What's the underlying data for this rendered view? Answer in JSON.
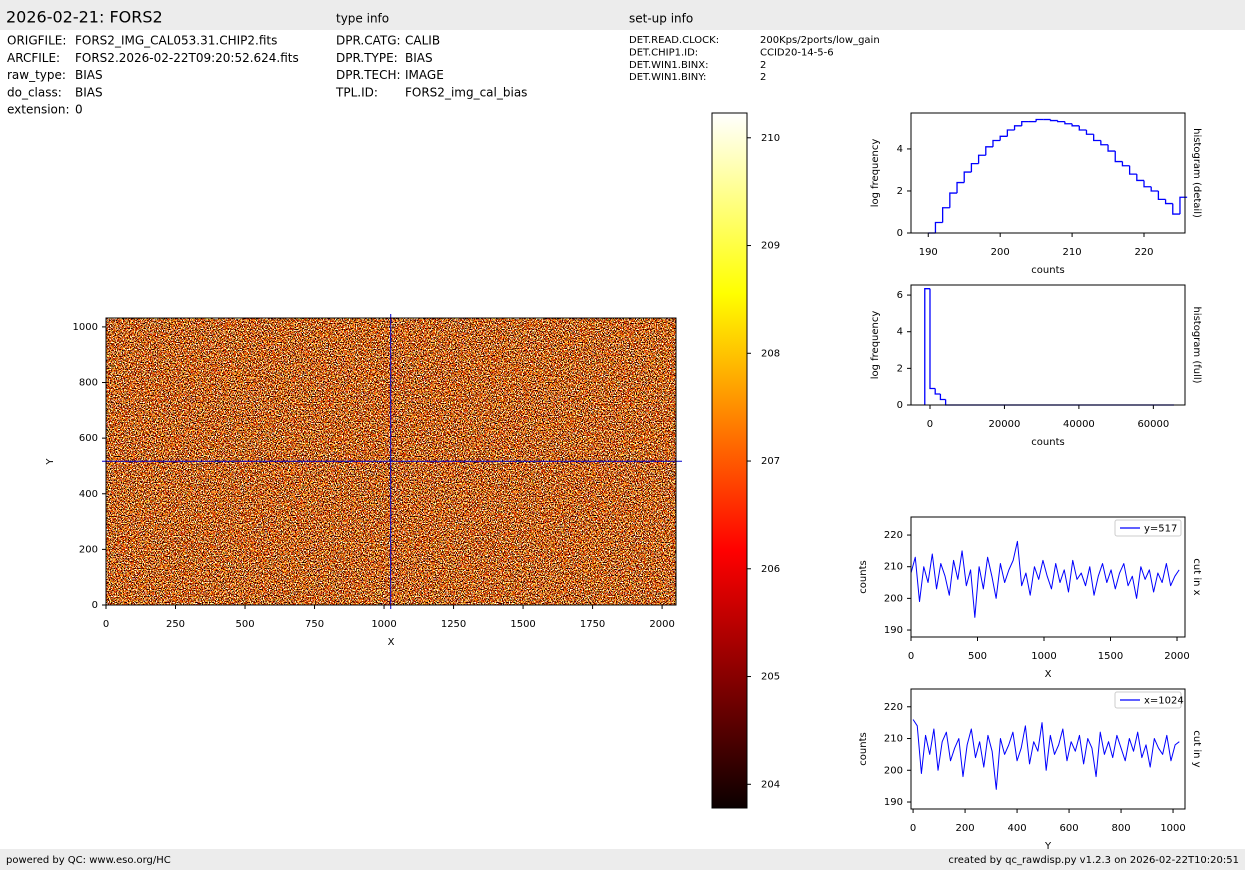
{
  "header": {
    "title": "2026-02-21: FORS2",
    "type_heading": "type info",
    "setup_heading": "set-up info"
  },
  "file_info": [
    {
      "key": "ORIGFILE:",
      "value": "FORS2_IMG_CAL053.31.CHIP2.fits"
    },
    {
      "key": "ARCFILE:",
      "value": "FORS2.2026-02-22T09:20:52.624.fits"
    },
    {
      "key": "raw_type:",
      "value": "BIAS"
    },
    {
      "key": "do_class:",
      "value": "BIAS"
    },
    {
      "key": "extension:",
      "value": "0"
    }
  ],
  "type_info": [
    {
      "key": "DPR.CATG:",
      "value": "CALIB"
    },
    {
      "key": "DPR.TYPE:",
      "value": "BIAS"
    },
    {
      "key": "DPR.TECH:",
      "value": "IMAGE"
    },
    {
      "key": "TPL.ID:",
      "value": "FORS2_img_cal_bias"
    }
  ],
  "setup_info": [
    {
      "key": "DET.READ.CLOCK:",
      "value": "200Kps/2ports/low_gain"
    },
    {
      "key": "DET.CHIP1.ID:",
      "value": "CCID20-14-5-6"
    },
    {
      "key": "DET.WIN1.BINX:",
      "value": "2"
    },
    {
      "key": "DET.WIN1.BINY:",
      "value": "2"
    }
  ],
  "footer": {
    "left": "powered by QC: www.eso.org/HC",
    "right": "created by qc_rawdisp.py v1.2.3 on 2026-02-22T10:20:51"
  },
  "chart_data": [
    {
      "type": "heatmap",
      "x_label": "X",
      "y_label": "Y",
      "xlim": [
        0,
        2050
      ],
      "ylim": [
        0,
        1032
      ],
      "xticks": [
        0,
        250,
        500,
        750,
        1000,
        1250,
        1500,
        1750,
        2000
      ],
      "yticks": [
        0,
        200,
        400,
        600,
        800,
        1000
      ],
      "crosshair": {
        "x": 1024,
        "y": 517
      },
      "crosshair_color": "#0000cc",
      "colormap": "hot",
      "zlim": [
        203.78,
        210.23
      ],
      "zticks": [
        204,
        205,
        206,
        207,
        208,
        209,
        210
      ]
    },
    {
      "type": "histogram",
      "x_label": "counts",
      "y_label": "log frequency",
      "side_label": "histogram (detail)",
      "color": "#0000ff",
      "xlim": [
        187.6,
        225.7
      ],
      "ylim": [
        0,
        5.71
      ],
      "xticks": [
        190,
        200,
        210,
        220
      ],
      "yticks": [
        0,
        2,
        4
      ],
      "bins": [
        190,
        191,
        192,
        193,
        194,
        195,
        196,
        197,
        198,
        199,
        200,
        201,
        202,
        203,
        204,
        205,
        206,
        207,
        208,
        209,
        210,
        211,
        212,
        213,
        214,
        215,
        216,
        217,
        218,
        219,
        220,
        221,
        222,
        223,
        224,
        225,
        226
      ],
      "counts": [
        0,
        0.5,
        1.2,
        1.9,
        2.4,
        2.9,
        3.3,
        3.7,
        4.1,
        4.4,
        4.6,
        4.9,
        5.1,
        5.3,
        5.3,
        5.4,
        5.4,
        5.35,
        5.3,
        5.2,
        5.1,
        4.9,
        4.7,
        4.4,
        4.2,
        3.9,
        3.4,
        3.2,
        2.8,
        2.5,
        2.2,
        2.0,
        1.6,
        1.4,
        0.9,
        1.7
      ]
    },
    {
      "type": "histogram",
      "x_label": "counts",
      "y_label": "log frequency",
      "side_label": "histogram (full)",
      "color": "#0000ff",
      "xlim": [
        -5100,
        68500
      ],
      "ylim": [
        0,
        6.55
      ],
      "xticks": [
        0,
        20000,
        40000,
        60000
      ],
      "yticks": [
        0,
        2,
        4,
        6
      ],
      "bins": [
        -1400,
        0,
        1400,
        2800,
        4200,
        65536
      ],
      "counts": [
        6.35,
        0.9,
        0.6,
        0.3,
        0
      ]
    },
    {
      "type": "line",
      "x_label": "X",
      "y_label": "counts",
      "side_label": "cut in x",
      "xlim": [
        0,
        2060
      ],
      "ylim": [
        187.8,
        225.7
      ],
      "xticks": [
        0,
        500,
        1000,
        1500,
        2000
      ],
      "yticks": [
        190,
        200,
        210,
        220
      ],
      "x": [
        0,
        32,
        64,
        96,
        128,
        160,
        192,
        224,
        256,
        288,
        320,
        352,
        384,
        416,
        448,
        480,
        512,
        544,
        576,
        608,
        640,
        672,
        704,
        736,
        768,
        800,
        832,
        864,
        896,
        928,
        960,
        992,
        1024,
        1056,
        1088,
        1120,
        1152,
        1184,
        1216,
        1248,
        1280,
        1312,
        1344,
        1376,
        1408,
        1440,
        1472,
        1504,
        1536,
        1568,
        1600,
        1632,
        1664,
        1696,
        1728,
        1760,
        1792,
        1824,
        1856,
        1888,
        1920,
        1952,
        1984,
        2016
      ],
      "series": [
        {
          "name": "y=517",
          "color": "#0000ff",
          "values": [
            208,
            213,
            199,
            210,
            205,
            214,
            203,
            211,
            207,
            201,
            212,
            206,
            215,
            204,
            209,
            194,
            210,
            203,
            213,
            207,
            200,
            211,
            205,
            209,
            212,
            218,
            204,
            208,
            201,
            210,
            206,
            212,
            207,
            203,
            211,
            205,
            209,
            202,
            212,
            206,
            208,
            204,
            210,
            201,
            207,
            211,
            205,
            209,
            203,
            208,
            211,
            204,
            207,
            200,
            210,
            206,
            209,
            202,
            208,
            205,
            211,
            204,
            207,
            209
          ]
        }
      ]
    },
    {
      "type": "line",
      "x_label": "Y",
      "y_label": "counts",
      "side_label": "cut in y",
      "xlim": [
        -8,
        1046
      ],
      "ylim": [
        187.8,
        225.6
      ],
      "xticks": [
        0,
        200,
        400,
        600,
        800,
        1000
      ],
      "yticks": [
        190,
        200,
        210,
        220
      ],
      "x": [
        0,
        16,
        32,
        48,
        64,
        80,
        96,
        112,
        128,
        144,
        160,
        176,
        192,
        208,
        224,
        240,
        256,
        272,
        288,
        304,
        320,
        336,
        352,
        368,
        384,
        400,
        416,
        432,
        448,
        464,
        480,
        496,
        512,
        528,
        544,
        560,
        576,
        592,
        608,
        624,
        640,
        656,
        672,
        688,
        704,
        720,
        736,
        752,
        768,
        784,
        800,
        816,
        832,
        848,
        864,
        880,
        896,
        912,
        928,
        944,
        960,
        976,
        992,
        1008,
        1024
      ],
      "series": [
        {
          "name": "x=1024",
          "color": "#0000ff",
          "values": [
            216,
            214,
            199,
            211,
            205,
            213,
            200,
            209,
            212,
            203,
            207,
            210,
            198,
            208,
            213,
            204,
            209,
            201,
            211,
            206,
            194,
            210,
            205,
            208,
            212,
            203,
            207,
            214,
            202,
            209,
            206,
            215,
            200,
            211,
            205,
            208,
            213,
            203,
            209,
            206,
            211,
            202,
            210,
            207,
            198,
            212,
            205,
            209,
            204,
            211,
            207,
            203,
            210,
            206,
            212,
            204,
            208,
            201,
            210,
            207,
            205,
            211,
            203,
            208,
            209
          ]
        }
      ]
    }
  ]
}
